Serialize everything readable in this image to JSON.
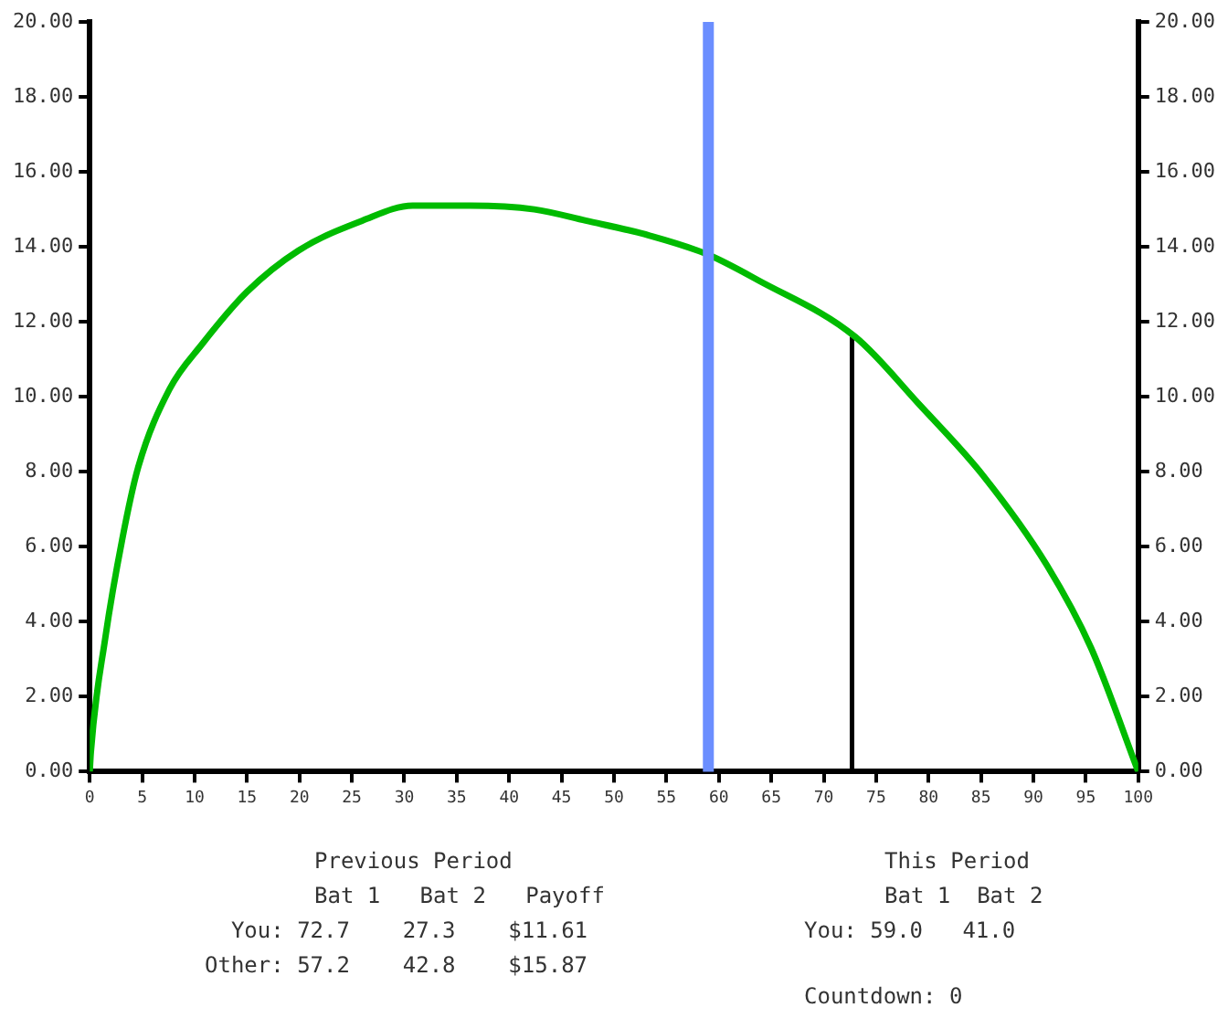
{
  "chart_data": {
    "type": "line",
    "xlim": [
      0,
      100
    ],
    "xticks": [
      0,
      5,
      10,
      15,
      20,
      25,
      30,
      35,
      40,
      45,
      50,
      55,
      60,
      65,
      70,
      75,
      80,
      85,
      90,
      95,
      100
    ],
    "ylim": [
      0,
      20
    ],
    "yticks": [
      {
        "value": 0,
        "label": "0.00"
      },
      {
        "value": 2,
        "label": "2.00"
      },
      {
        "value": 4,
        "label": "4.00"
      },
      {
        "value": 6,
        "label": "6.00"
      },
      {
        "value": 8,
        "label": "8.00"
      },
      {
        "value": 10,
        "label": "10.00"
      },
      {
        "value": 12,
        "label": "12.00"
      },
      {
        "value": 14,
        "label": "14.00"
      },
      {
        "value": 16,
        "label": "16.00"
      },
      {
        "value": 18,
        "label": "18.00"
      },
      {
        "value": 20,
        "label": "20.00"
      }
    ],
    "y2lim": [
      0,
      20
    ],
    "y2ticks": [
      {
        "value": 0,
        "label": "0.00"
      },
      {
        "value": 2,
        "label": "2.00"
      },
      {
        "value": 4,
        "label": "4.00"
      },
      {
        "value": 6,
        "label": "6.00"
      },
      {
        "value": 8,
        "label": "8.00"
      },
      {
        "value": 10,
        "label": "10.00"
      },
      {
        "value": 12,
        "label": "12.00"
      },
      {
        "value": 14,
        "label": "14.00"
      },
      {
        "value": 16,
        "label": "16.00"
      },
      {
        "value": 18,
        "label": "18.00"
      },
      {
        "value": 20,
        "label": "20.00"
      }
    ],
    "series": [
      {
        "type": "line",
        "color": "#00bb00",
        "x": [
          0,
          0.1,
          1.5,
          3.1,
          4.6,
          7.6,
          10.7,
          15.0,
          19.9,
          26.0,
          30.8,
          36.3,
          42.4,
          47.3,
          53.4,
          58.9,
          63.8,
          73.0,
          79.1,
          85.2,
          91.3,
          95.5,
          100
        ],
        "values": [
          0,
          0.5,
          3.6,
          6.2,
          8.1,
          10.2,
          11.4,
          12.8,
          13.9,
          14.7,
          15.1,
          15.1,
          15.0,
          14.7,
          14.3,
          13.8,
          13.1,
          11.6,
          9.8,
          7.9,
          5.5,
          3.3,
          0
        ]
      },
      {
        "type": "line",
        "color": "#000000",
        "x": [
          72.7,
          72.7
        ],
        "values": [
          0,
          11.6
        ]
      }
    ],
    "ref_lines": [
      {
        "axis": "x",
        "value": 59,
        "color": "#6b8eff"
      }
    ],
    "marker": "none",
    "legend": false,
    "grid": false,
    "annotations": [
      "Previous Period",
      "Bat 1   Bat 2   Payoff",
      "  You: 72.7    27.3    $11.61",
      "Other: 57.2    42.8    $15.87",
      "This Period",
      "Bat 1  Bat 2",
      "You: 59.0   41.0",
      "Countdown: 0"
    ]
  }
}
